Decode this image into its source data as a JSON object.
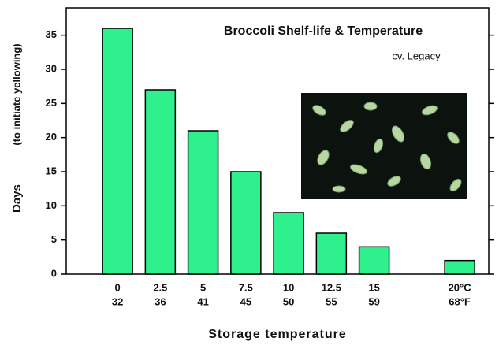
{
  "chart_data": {
    "type": "bar",
    "title": "Broccoli Shelf-life & Temperature",
    "subtitle": "cv. Legacy",
    "y_label": "Days",
    "y_label_note": "(to initiate yellowing)",
    "x_label": "Storage temperature",
    "x": [
      0,
      2.5,
      5,
      7.5,
      10,
      12.5,
      15,
      20
    ],
    "values": [
      36,
      27,
      21,
      15,
      9,
      6,
      4,
      2
    ],
    "color": "#2ef08c",
    "xlim": [
      -3,
      21.7
    ],
    "xticks": [
      0,
      2.5,
      5,
      7.5,
      10,
      12.5,
      15,
      {
        "value": 20,
        "label": "20°C"
      }
    ],
    "xticks_fahrenheit": [
      32,
      36,
      41,
      45,
      50,
      55,
      59,
      {
        "value": 68,
        "label": "68°F"
      }
    ],
    "ylim": [
      0,
      39
    ],
    "yticks": [
      0,
      5,
      10,
      15,
      20,
      25,
      30,
      35
    ],
    "grid": false
  }
}
